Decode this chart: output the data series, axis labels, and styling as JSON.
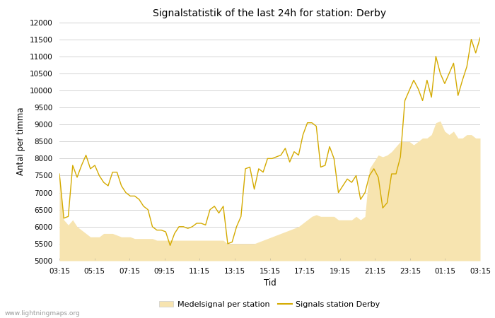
{
  "title": "Signalstatistik of the last 24h for station: Derby",
  "xlabel": "Tid",
  "ylabel": "Antal per timma",
  "ylim": [
    5000,
    12000
  ],
  "yticks": [
    5000,
    5500,
    6000,
    6500,
    7000,
    7500,
    8000,
    8500,
    9000,
    9500,
    10000,
    10500,
    11000,
    11500,
    12000
  ],
  "xtick_labels": [
    "03:15",
    "05:15",
    "07:15",
    "09:15",
    "11:15",
    "13:15",
    "15:15",
    "17:15",
    "19:15",
    "21:15",
    "23:15",
    "01:15",
    "03:15"
  ],
  "line_color": "#d4aa00",
  "fill_color": "#f7e4b0",
  "fill_alpha": 1.0,
  "background_color": "#ffffff",
  "grid_color": "#cccccc",
  "watermark": "www.lightningmaps.org",
  "legend_fill_label": "Medelsignal per station",
  "legend_line_label": "Signals station Derby",
  "line_y": [
    7550,
    6250,
    6300,
    7800,
    7450,
    7800,
    8100,
    7700,
    7800,
    7500,
    7300,
    7200,
    7600,
    7600,
    7200,
    7000,
    6900,
    6900,
    6800,
    6600,
    6500,
    6000,
    5900,
    5900,
    5850,
    5450,
    5800,
    6000,
    6000,
    5950,
    6000,
    6100,
    6100,
    6050,
    6500,
    6600,
    6400,
    6600,
    5500,
    5550,
    6000,
    6300,
    7700,
    7750,
    7100,
    7700,
    7600,
    8000,
    8000,
    8050,
    8100,
    8300,
    7900,
    8200,
    8100,
    8700,
    9050,
    9050,
    8950,
    7750,
    7800,
    8350,
    8000,
    7000,
    7200,
    7400,
    7300,
    7500,
    6800,
    7000,
    7500,
    7700,
    7450,
    6550,
    6700,
    7550,
    7550,
    8050,
    9700,
    10000,
    10300,
    10050,
    9700,
    10300,
    9800,
    11000,
    10500,
    10200,
    10500,
    10800,
    9850,
    10300,
    10700,
    11500,
    11100,
    11550
  ],
  "fill_y": [
    7550,
    6200,
    6050,
    6200,
    6000,
    5900,
    5800,
    5700,
    5700,
    5700,
    5800,
    5800,
    5800,
    5750,
    5700,
    5700,
    5700,
    5650,
    5650,
    5650,
    5650,
    5650,
    5600,
    5600,
    5600,
    5600,
    5600,
    5600,
    5600,
    5600,
    5600,
    5600,
    5600,
    5600,
    5600,
    5600,
    5600,
    5600,
    5500,
    5500,
    5500,
    5500,
    5500,
    5500,
    5500,
    5550,
    5600,
    5650,
    5700,
    5750,
    5800,
    5850,
    5900,
    5950,
    6000,
    6100,
    6200,
    6300,
    6350,
    6300,
    6300,
    6300,
    6300,
    6200,
    6200,
    6200,
    6200,
    6300,
    6200,
    6300,
    7700,
    7900,
    8100,
    8050,
    8100,
    8200,
    8350,
    8500,
    8500,
    8500,
    8400,
    8500,
    8600,
    8600,
    8700,
    9050,
    9100,
    8800,
    8700,
    8800,
    8600,
    8600,
    8700,
    8700,
    8600,
    8600
  ]
}
